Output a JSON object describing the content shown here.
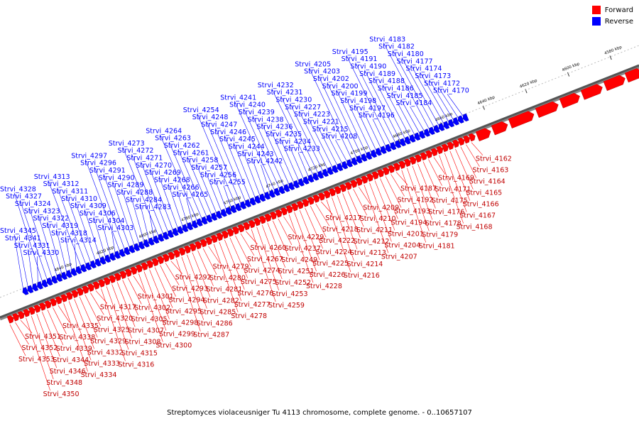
{
  "caption": "Streptomyces violaceusniger Tu 4113 chromosome, complete genome. - 0..10657107",
  "legend": {
    "forward": {
      "label": "Forward",
      "color": "#ff0000"
    },
    "reverse": {
      "label": "Reverse",
      "color": "#0000ff"
    }
  },
  "track": {
    "ticks": [
      "4580 kbp",
      "4600 kbp",
      "4620 kbp",
      "4640 kbp",
      "4660 kbp",
      "4680 kbp",
      "4700 kbp",
      "4720 kbp",
      "4740 kbp",
      "4760 kbp",
      "4780 kbp",
      "4800 kbp",
      "4820 kbp",
      "4840 kbp"
    ]
  },
  "reverse_genes": [
    "Strvi_4170",
    "Strvi_4172",
    "Strvi_4173",
    "Strvi_4174",
    "Strvi_4177",
    "Strvi_4180",
    "Strvi_4182",
    "Strvi_4183",
    "Strvi_4184",
    "Strvi_4185",
    "Strvi_4186",
    "Strvi_4188",
    "Strvi_4189",
    "Strvi_4190",
    "Strvi_4191",
    "Strvi_4195",
    "Strvi_4196",
    "Strvi_4197",
    "Strvi_4198",
    "Strvi_4199",
    "Strvi_4200",
    "Strvi_4202",
    "Strvi_4203",
    "Strvi_4205",
    "Strvi_4208",
    "Strvi_4215",
    "Strvi_4221",
    "Strvi_4223",
    "Strvi_4227",
    "Strvi_4230",
    "Strvi_4231",
    "Strvi_4232",
    "Strvi_4233",
    "Strvi_4234",
    "Strvi_4235",
    "Strvi_4236",
    "Strvi_4238",
    "Strvi_4239",
    "Strvi_4240",
    "Strvi_4241",
    "Strvi_4242",
    "Strvi_4243",
    "Strvi_4244",
    "Strvi_4245",
    "Strvi_4246",
    "Strvi_4247",
    "Strvi_4248",
    "Strvi_4254",
    "Strvi_4255",
    "Strvi_4256",
    "Strvi_4257",
    "Strvi_4258",
    "Strvi_4261",
    "Strvi_4262",
    "Strvi_4263",
    "Strvi_4264",
    "Strvi_4265",
    "Strvi_4266",
    "Strvi_4268",
    "Strvi_4269",
    "Strvi_4270",
    "Strvi_4271",
    "Strvi_4272",
    "Strvi_4273",
    "Strvi_4283",
    "Strvi_4284",
    "Strvi_4288",
    "Strvi_4289",
    "Strvi_4290",
    "Strvi_4291",
    "Strvi_4296",
    "Strvi_4297",
    "Strvi_4303",
    "Strvi_4304",
    "Strvi_4306",
    "Strvi_4309",
    "Strvi_4310",
    "Strvi_4311",
    "Strvi_4312",
    "Strvi_4313",
    "Strvi_4314",
    "Strvi_4318",
    "Strvi_4319",
    "Strvi_4322",
    "Strvi_4323",
    "Strvi_4324",
    "Strvi_4327",
    "Strvi_4328",
    "Strvi_4330",
    "Strvi_4331",
    "Strvi_4341",
    "Strvi_4345"
  ],
  "forward_genes": [
    "Strvi_4162",
    "Strvi_4163",
    "Strvi_4164",
    "Strvi_4165",
    "Strvi_4166",
    "Strvi_4167",
    "Strvi_4168",
    "Strvi_4169",
    "Strvi_4171",
    "Strvi_4175",
    "Strvi_4176",
    "Strvi_4178",
    "Strvi_4179",
    "Strvi_4181",
    "Strvi_4187",
    "Strvi_4192",
    "Strvi_4193",
    "Strvi_4194",
    "Strvi_4201",
    "Strvi_4204",
    "Strvi_4207",
    "Strvi_4209",
    "Strvi_4210",
    "Strvi_4211",
    "Strvi_4212",
    "Strvi_4213",
    "Strvi_4214",
    "Strvi_4216",
    "Strvi_4217",
    "Strvi_4218",
    "Strvi_4222",
    "Strvi_4224",
    "Strvi_4225",
    "Strvi_4226",
    "Strvi_4228",
    "Strvi_4229",
    "Strvi_4237",
    "Strvi_4249",
    "Strvi_4251",
    "Strvi_4252",
    "Strvi_4253",
    "Strvi_4259",
    "Strvi_4260",
    "Strvi_4267",
    "Strvi_4274",
    "Strvi_4275",
    "Strvi_4276",
    "Strvi_4277",
    "Strvi_4278",
    "Strvi_4279",
    "Strvi_4280",
    "Strvi_4281",
    "Strvi_4282",
    "Strvi_4285",
    "Strvi_4286",
    "Strvi_4287",
    "Strvi_4292",
    "Strvi_4293",
    "Strvi_4294",
    "Strvi_4295",
    "Strvi_4298",
    "Strvi_4299",
    "Strvi_4300",
    "Strvi_4301",
    "Strvi_4302",
    "Strvi_4305",
    "Strvi_4307",
    "Strvi_4308",
    "Strvi_4315",
    "Strvi_4316",
    "Strvi_4317",
    "Strvi_4320",
    "Strvi_4325",
    "Strvi_4329",
    "Strvi_4332",
    "Strvi_4333",
    "Strvi_4334",
    "Strvi_4335",
    "Strvi_4338",
    "Strvi_4339",
    "Strvi_4344",
    "Strvi_4346",
    "Strvi_4348",
    "Strvi_4350",
    "Strvi_4351",
    "Strvi_4352",
    "Strvi_4353"
  ]
}
